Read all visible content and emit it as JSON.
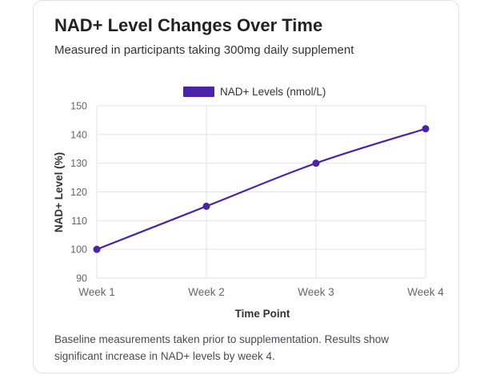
{
  "card": {
    "title": "NAD+ Level Changes Over Time",
    "subtitle": "Measured in participants taking 300mg daily supplement",
    "footnote": "Baseline measurements taken prior to supplementation. Results show significant increase in NAD+ levels by week 4."
  },
  "colors": {
    "series": "#4b23a8",
    "grid": "#e3e3e3",
    "axis_text": "#666666"
  },
  "chart_data": {
    "type": "line",
    "categories": [
      "Week 1",
      "Week 2",
      "Week 3",
      "Week 4"
    ],
    "series": [
      {
        "name": "NAD+ Levels (nmol/L)",
        "values": [
          100,
          115,
          130,
          142
        ]
      }
    ],
    "xlabel": "Time Point",
    "ylabel": "NAD+ Level (%)",
    "ylim": [
      90,
      150
    ],
    "yticks": [
      90,
      100,
      110,
      120,
      130,
      140,
      150
    ],
    "grid": true,
    "legend": "top-center"
  }
}
